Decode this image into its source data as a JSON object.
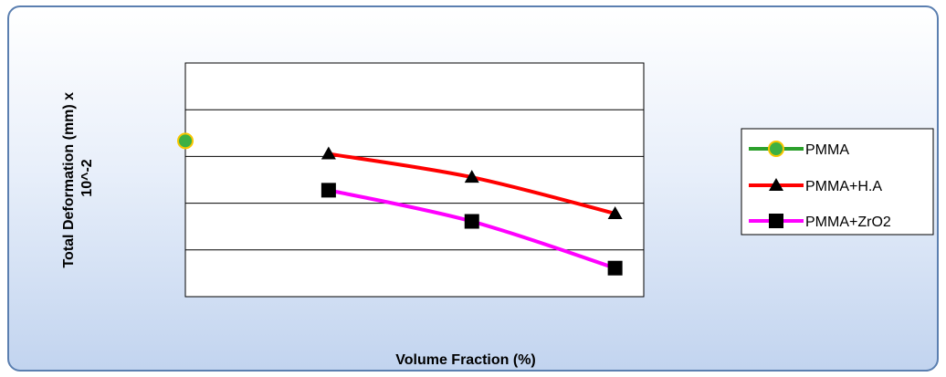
{
  "chart_data": {
    "type": "line",
    "x": [
      1,
      2,
      3,
      4
    ],
    "series": [
      {
        "name": "PMMA",
        "color": "#2ca02c",
        "marker": "circle",
        "values": [
          3.0,
          null,
          null,
          null
        ]
      },
      {
        "name": "PMMA+H.A",
        "color": "#ff0000",
        "marker": "triangle",
        "values": [
          null,
          2.75,
          2.3,
          1.6
        ]
      },
      {
        "name": "PMMA+ZrO2",
        "color": "#ff00ff",
        "marker": "square",
        "values": [
          null,
          2.05,
          1.45,
          0.55
        ]
      }
    ],
    "xlabel": "Volume Fraction (%)",
    "ylabel_lines": [
      "Total Deformation (mm) x",
      "10^-2"
    ],
    "ylim": [
      0,
      4.5
    ],
    "xlim": [
      1,
      4.2
    ],
    "grid": true,
    "legend_position": "right"
  }
}
